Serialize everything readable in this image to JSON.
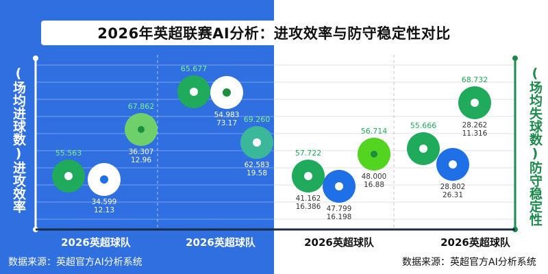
{
  "title": "2026年英超联赛AI分析：进攻效率与防守稳定性对比",
  "left_axis_label": "(场均进球数)进攻效率",
  "right_axis_label": "(场均失球数)防守稳定性",
  "source_label": "数据来源：英超官方AI分析系统",
  "colors": {
    "left_bg": "#2f6fe0",
    "right_bg": "#ffffff",
    "green": "#1faa5c",
    "light_green": "#6fd06b",
    "lime": "#52d420",
    "white_bubble": "#ffffff",
    "blue": "#1f6fe6",
    "teal": "#3bb89a",
    "left_axis": "#ffffff",
    "right_axis": "#1b8a4c"
  },
  "chart_data": {
    "type": "scatter",
    "title": "2026年英超联赛AI分析：进攻效率与防守稳定性对比",
    "xlabel": "",
    "ylabel": "(场均进球数)进攻效率",
    "ylabel_right": "(场均失球数)防守稳定性",
    "categories": [
      "2026英超球队",
      "2026英超球队",
      "2026英超球队",
      "2026英超球队"
    ],
    "groups": [
      {
        "category": "2026英超球队",
        "points": [
          {
            "top_label": "55.563",
            "color": "green",
            "dot": "light",
            "bottom_labels": []
          },
          {
            "top_label": "",
            "color": "white",
            "dot": "blue",
            "bottom_labels": [
              "34.599",
              "12.13"
            ]
          },
          {
            "top_label": "67.862",
            "color": "light_green",
            "dot": "green",
            "bottom_labels": [
              "36.307",
              "12.96"
            ]
          }
        ]
      },
      {
        "category": "2026英超球队",
        "points": [
          {
            "top_label": "65.677",
            "color": "green",
            "dot": "white",
            "bottom_labels": []
          },
          {
            "top_label": "",
            "color": "white",
            "dot": "green",
            "bottom_labels": [
              "54.983",
              "73.17"
            ]
          },
          {
            "top_label": "69.260",
            "color": "teal",
            "dot": "light",
            "bottom_labels": [
              "62.583",
              "19.58"
            ]
          }
        ]
      },
      {
        "category": "2026英超球队",
        "points": [
          {
            "top_label": "57.722",
            "color": "green",
            "dot": "white",
            "bottom_labels": [
              "41.162",
              "16.386"
            ]
          },
          {
            "top_label": "",
            "color": "blue",
            "dot": "white",
            "bottom_labels": [
              "47.799",
              "16.198"
            ]
          },
          {
            "top_label": "56.714",
            "color": "lime",
            "dot": "green",
            "bottom_labels": [
              "48.000",
              "16.88"
            ]
          }
        ]
      },
      {
        "category": "2026英超球队",
        "points": [
          {
            "top_label": "55.666",
            "color": "green",
            "dot": "white",
            "bottom_labels": []
          },
          {
            "top_label": "",
            "color": "blue",
            "dot": "white",
            "bottom_labels": [
              "28.802",
              "26.31"
            ]
          },
          {
            "top_label": "68.732",
            "color": "green",
            "dot": "white",
            "bottom_labels": [
              "28.262",
              "11.316"
            ]
          }
        ]
      }
    ],
    "grid": true,
    "legend": "none"
  }
}
